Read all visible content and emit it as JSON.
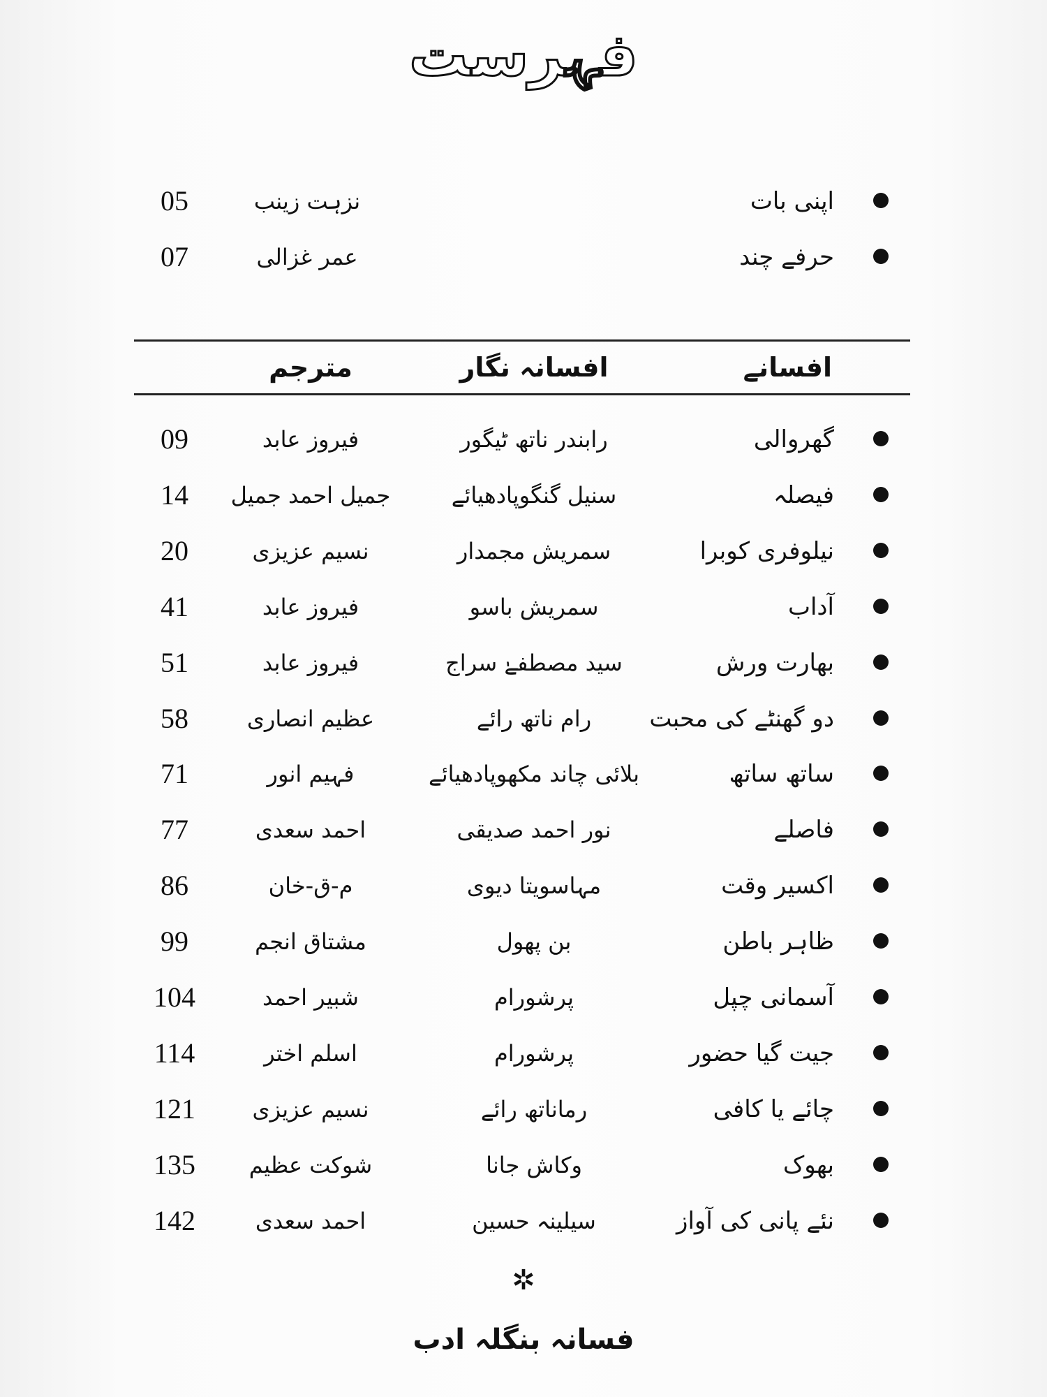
{
  "title": "فہرست",
  "intro": [
    {
      "title": "اپنی بات",
      "author": "نزہت زینب",
      "page": "05"
    },
    {
      "title": "حرفے چند",
      "author": "عمر غزالی",
      "page": "07"
    }
  ],
  "table_header": {
    "stories": "افسانے",
    "authors": "افسانہ نگار",
    "translators": "مترجم"
  },
  "entries": [
    {
      "title": "گھروالی",
      "author": "رابندر ناتھ ٹیگور",
      "translator": "فیروز عابد",
      "page": "09"
    },
    {
      "title": "فیصلہ",
      "author": "سنیل گنگوپادھیائے",
      "translator": "جمیل احمد جمیل",
      "page": "14"
    },
    {
      "title": "نیلوفری کوبرا",
      "author": "سمریش مجمدار",
      "translator": "نسیم عزیزی",
      "page": "20"
    },
    {
      "title": "آداب",
      "author": "سمریش باسو",
      "translator": "فیروز عابد",
      "page": "41"
    },
    {
      "title": "بھارت ورش",
      "author": "سید مصطفےٰ سراج",
      "translator": "فیروز عابد",
      "page": "51"
    },
    {
      "title": "دو گھنٹے کی محبت",
      "author": "رام ناتھ رائے",
      "translator": "عظیم انصاری",
      "page": "58"
    },
    {
      "title": "ساتھ ساتھ",
      "author": "بلائی چاند مکھوپادھیائے",
      "translator": "فہیم انور",
      "page": "71"
    },
    {
      "title": "فاصلے",
      "author": "نور احمد صدیقی",
      "translator": "احمد سعدی",
      "page": "77"
    },
    {
      "title": "اکسیر وقت",
      "author": "مہاسویتا دیوی",
      "translator": "م-ق-خان",
      "page": "86"
    },
    {
      "title": "ظاہر باطن",
      "author": "بن پھول",
      "translator": "مشتاق انجم",
      "page": "99"
    },
    {
      "title": "آسمانی چپل",
      "author": "پرشورام",
      "translator": "شبیر احمد",
      "page": "104"
    },
    {
      "title": "جیت گیا حضور",
      "author": "پرشورام",
      "translator": "اسلم اختر",
      "page": "114"
    },
    {
      "title": "چائے یا کافی",
      "author": "رماناتھ رائے",
      "translator": "نسیم عزیزی",
      "page": "121"
    },
    {
      "title": "بھوک",
      "author": "وکاش جانا",
      "translator": "شوکت عظیم",
      "page": "135"
    },
    {
      "title": "نئے پانی کی آواز",
      "author": "سیلینہ حسین",
      "translator": "احمد سعدی",
      "page": "142"
    }
  ],
  "ornament": "✲",
  "footer": "فسانہ بنگلہ ادب"
}
